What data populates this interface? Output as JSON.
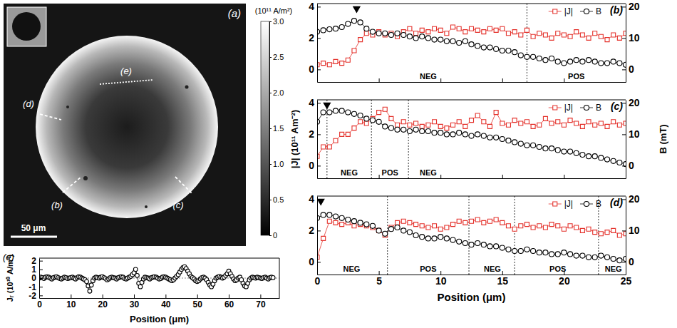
{
  "chart_data": [
    {
      "type": "image",
      "title": "(a)",
      "colorbar": {
        "title": "(10¹¹ A/m²)",
        "lim": [
          0,
          3
        ],
        "ticks": [
          0,
          0.5,
          {
            "value": 1,
            "label": "1.0"
          },
          1.5,
          {
            "value": 2,
            "label": "2.0"
          },
          2.5,
          {
            "value": 3,
            "label": "3.0"
          }
        ]
      },
      "scale_bar": "50 μm",
      "annotations": [
        "(b)",
        "(c)",
        "(d)",
        "(e)"
      ]
    },
    {
      "type": "line",
      "title": "(b)",
      "legend": "upper right",
      "tick_labels": "y",
      "x": [
        0,
        0.5,
        1,
        1.5,
        2,
        2.5,
        3,
        3.5,
        4,
        4.5,
        5,
        5.5,
        6,
        6.5,
        7,
        7.5,
        8,
        8.5,
        9,
        9.5,
        10,
        10.5,
        11,
        11.5,
        12,
        12.5,
        13,
        13.5,
        14,
        14.5,
        15,
        15.5,
        16,
        16.5,
        17,
        17.5,
        18,
        18.5,
        19,
        19.5,
        20,
        20.5,
        21,
        21.5,
        22,
        22.5,
        23,
        23.5,
        24,
        24.5,
        25
      ],
      "xlim": [
        0,
        25
      ],
      "xticks": [
        0,
        5,
        10,
        15,
        20,
        25
      ],
      "ylim": [
        -0.8,
        4.2
      ],
      "yticks": [
        0,
        2,
        4
      ],
      "y2lim": [
        -4,
        21
      ],
      "y2ticks": [
        0,
        10,
        20
      ],
      "series": [
        {
          "name": "|J|",
          "color": "#e4312b",
          "marker": "square",
          "line_style": "solid",
          "values": [
            0.3,
            0.4,
            0.3,
            0.5,
            0.4,
            0.6,
            1.2,
            1.9,
            2.3,
            2.2,
            2.4,
            2.2,
            2.3,
            2.1,
            2.4,
            2.6,
            2.3,
            2.5,
            2.4,
            2.6,
            2.5,
            2.3,
            2.7,
            2.6,
            2.4,
            2.6,
            2.5,
            2.4,
            2.6,
            2.5,
            2.6,
            2.3,
            2.4,
            2.2,
            2.5,
            2.1,
            2.3,
            2.2,
            2,
            2.3,
            2.2,
            2.1,
            2.4,
            2.2,
            2,
            2.3,
            2.1,
            1.9,
            2.2,
            2,
            2.3
          ]
        },
        {
          "name": "B",
          "color": "#000000",
          "marker": "circle",
          "line_style": "solid",
          "axis": "y2",
          "values": [
            12,
            12.5,
            12.8,
            13,
            13.5,
            14.5,
            15.5,
            15,
            13,
            12,
            11.5,
            11.5,
            11,
            11.5,
            11,
            10.5,
            10,
            10.5,
            10,
            9.5,
            9.5,
            9,
            9,
            8.5,
            9,
            8,
            7.5,
            7,
            7,
            6.5,
            6,
            6,
            5.5,
            4.5,
            4,
            4,
            3.5,
            3,
            3.5,
            2.5,
            2,
            2.5,
            3,
            2.5,
            3,
            2.5,
            2,
            2,
            2.5,
            2,
            1.5
          ]
        }
      ],
      "peak": 3.2,
      "dividers": [
        17
      ],
      "regions": [
        {
          "label": "NEG",
          "x": 9
        },
        {
          "label": "POS",
          "x": 21
        }
      ]
    },
    {
      "type": "line",
      "title": "(c)",
      "legend": "upper right",
      "tick_labels": "y",
      "ylabel": "|J| (10¹¹ Am⁻²)",
      "y2label": "B (mT)",
      "x": [
        0,
        0.5,
        1,
        1.5,
        2,
        2.5,
        3,
        3.5,
        4,
        4.5,
        5,
        5.5,
        6,
        6.5,
        7,
        7.5,
        8,
        8.5,
        9,
        9.5,
        10,
        10.5,
        11,
        11.5,
        12,
        12.5,
        13,
        13.5,
        14,
        14.5,
        15,
        15.5,
        16,
        16.5,
        17,
        17.5,
        18,
        18.5,
        19,
        19.5,
        20,
        20.5,
        21,
        21.5,
        22,
        22.5,
        23,
        23.5,
        24,
        24.5,
        25
      ],
      "xlim": [
        0,
        25
      ],
      "xticks": [
        0,
        5,
        10,
        15,
        20,
        25
      ],
      "ylim": [
        -0.8,
        4.2
      ],
      "yticks": [
        0,
        2,
        4
      ],
      "y2lim": [
        -4,
        21
      ],
      "y2ticks": [
        0,
        10,
        20
      ],
      "series": [
        {
          "name": "|J|",
          "color": "#e4312b",
          "marker": "square",
          "line_style": "solid",
          "values": [
            0.6,
            1.2,
            1.2,
            1.6,
            2,
            2,
            2.4,
            2.8,
            2.7,
            3,
            3.4,
            3.6,
            3,
            2.6,
            2.8,
            2.6,
            2.7,
            2.5,
            2.6,
            2.8,
            2.5,
            2.4,
            2.6,
            2.8,
            2.5,
            2.9,
            3.2,
            2.8,
            2.5,
            3.4,
            2.7,
            2.6,
            2.9,
            2.7,
            2.8,
            2.5,
            2.6,
            3,
            2.7,
            2.8,
            2.6,
            2.9,
            2.7,
            2.5,
            2.8,
            2.6,
            2.7,
            2.5,
            2.8,
            2.6,
            2.7
          ]
        },
        {
          "name": "B",
          "color": "#000000",
          "marker": "circle",
          "line_style": "solid",
          "axis": "y2",
          "values": [
            14,
            17,
            17,
            17.5,
            17.5,
            17,
            16.5,
            16,
            15,
            14.5,
            14,
            12.5,
            12,
            11.5,
            11.5,
            11,
            11.5,
            11,
            11,
            10.5,
            10.5,
            10,
            10,
            10.5,
            10,
            9.5,
            10,
            9.5,
            9,
            9,
            8.5,
            8,
            7.5,
            7,
            6.5,
            6.5,
            6,
            5.5,
            5.5,
            5,
            4.5,
            4.5,
            4,
            3.5,
            3,
            3,
            2.5,
            2,
            1.5,
            1,
            0.5
          ]
        }
      ],
      "peak": 0.8,
      "dividers": [
        0.8,
        4.4,
        7.4
      ],
      "regions": [
        {
          "label": "NEG",
          "x": 2.6
        },
        {
          "label": "POS",
          "x": 5.9
        },
        {
          "label": "NEG",
          "x": 9
        }
      ]
    },
    {
      "type": "line",
      "title": "(d)",
      "legend": "upper right",
      "xlabel": "Position (μm)",
      "x": [
        0,
        0.5,
        1,
        1.5,
        2,
        2.5,
        3,
        3.5,
        4,
        4.5,
        5,
        5.5,
        6,
        6.5,
        7,
        7.5,
        8,
        8.5,
        9,
        9.5,
        10,
        10.5,
        11,
        11.5,
        12,
        12.5,
        13,
        13.5,
        14,
        14.5,
        15,
        15.5,
        16,
        16.5,
        17,
        17.5,
        18,
        18.5,
        19,
        19.5,
        20,
        20.5,
        21,
        21.5,
        22,
        22.5,
        23,
        23.5,
        24,
        24.5,
        25
      ],
      "xlim": [
        0,
        25
      ],
      "xticks": [
        0,
        5,
        10,
        15,
        20,
        25
      ],
      "ylim": [
        -0.8,
        4.2
      ],
      "yticks": [
        0,
        2,
        4
      ],
      "y2lim": [
        -4,
        21
      ],
      "y2ticks": [
        0,
        10,
        20
      ],
      "series": [
        {
          "name": "|J|",
          "color": "#e4312b",
          "marker": "square",
          "line_style": "solid",
          "values": [
            0.3,
            1.5,
            2.6,
            2.5,
            2.4,
            2.5,
            2.3,
            2.4,
            2.3,
            2.2,
            2,
            1.7,
            2.2,
            2.5,
            2.6,
            2.5,
            2.4,
            2.3,
            2.2,
            2.3,
            2.1,
            2.2,
            2.4,
            2.6,
            2.5,
            2.6,
            2.7,
            2.5,
            2.6,
            2.7,
            2.5,
            2.3,
            2.1,
            2.3,
            2.4,
            2.2,
            2.3,
            2.2,
            2.4,
            2.3,
            2.1,
            2.3,
            2.2,
            2,
            2.1,
            1.9,
            1.8,
            1.9,
            2,
            1.7,
            1.8
          ]
        },
        {
          "name": "B",
          "color": "#000000",
          "marker": "circle",
          "line_style": "solid",
          "axis": "y2",
          "values": [
            14,
            15,
            15,
            14.5,
            14,
            13.5,
            13,
            12.5,
            12,
            11.5,
            10,
            9,
            10.5,
            11,
            10,
            9.5,
            8.5,
            8,
            7.5,
            7.5,
            8,
            7.5,
            7,
            6.5,
            6,
            5.5,
            6,
            5.5,
            5,
            5,
            4.5,
            4,
            3.5,
            3.5,
            4,
            3.5,
            3,
            3,
            2.5,
            2.5,
            3,
            2.5,
            2,
            2,
            1.5,
            1.5,
            2,
            1.5,
            1,
            0.5,
            1
          ]
        }
      ],
      "peak": 0.3,
      "dividers": [
        5.7,
        12.3,
        16,
        22.8
      ],
      "regions": [
        {
          "label": "NEG",
          "x": 2.8
        },
        {
          "label": "POS",
          "x": 9
        },
        {
          "label": "NEG",
          "x": 14.2
        },
        {
          "label": "POS",
          "x": 19.5
        },
        {
          "label": "NEG",
          "x": 24
        }
      ]
    },
    {
      "type": "line",
      "title": "(e)",
      "xlabel": "Position (μm)",
      "ylabel": "Jᵣ (10¹⁰ A/m²)",
      "x": [
        0,
        0.5,
        1,
        1.5,
        2,
        2.5,
        3,
        3.5,
        4,
        4.5,
        5,
        5.5,
        6,
        6.5,
        7,
        7.5,
        8,
        8.5,
        9,
        9.5,
        10,
        10.5,
        11,
        11.5,
        12,
        12.5,
        13,
        13.5,
        14,
        14.5,
        15,
        15.5,
        16,
        16.5,
        17,
        17.5,
        18,
        18.5,
        19,
        19.5,
        20,
        20.5,
        21,
        21.5,
        22,
        22.5,
        23,
        23.5,
        24,
        24.5,
        25,
        25.5,
        26,
        26.5,
        27,
        27.5,
        28,
        28.5,
        29,
        29.5,
        30,
        30.5,
        31,
        31.5,
        32,
        32.5,
        33,
        33.5,
        34,
        34.5,
        35,
        35.5,
        36,
        36.5,
        37,
        37.5,
        38,
        38.5,
        39,
        39.5,
        40,
        40.5,
        41,
        41.5,
        42,
        42.5,
        43,
        43.5,
        44,
        44.5,
        45,
        45.5,
        46,
        46.5,
        47,
        47.5,
        48,
        48.5,
        49,
        49.5,
        50,
        50.5,
        51,
        51.5,
        52,
        52.5,
        53,
        53.5,
        54,
        54.5,
        55,
        55.5,
        56,
        56.5,
        57,
        57.5,
        58,
        58.5,
        59,
        59.5,
        60,
        60.5,
        61,
        61.5,
        62,
        62.5,
        63,
        63.5,
        64,
        64.5,
        65,
        65.5,
        66,
        66.5,
        67,
        67.5,
        68,
        68.5,
        69,
        69.5,
        70,
        70.5,
        71,
        71.5,
        72,
        72.5,
        73,
        73.5,
        74
      ],
      "xlim": [
        0,
        76
      ],
      "xticks": [
        0,
        10,
        20,
        30,
        40,
        50,
        60,
        70
      ],
      "ylim": [
        -2.3,
        2.3
      ],
      "yticks": [
        -2,
        -1,
        0,
        1,
        2
      ],
      "hline": 0,
      "series": [
        {
          "color": "#000000",
          "marker": "circle",
          "line_style": "solid",
          "values": [
            0,
            0.1,
            0.05,
            -0.05,
            0.1,
            0.15,
            0.1,
            0,
            -0.1,
            0.05,
            0.1,
            0.15,
            0.05,
            -0.05,
            -0.1,
            0,
            0.1,
            0.05,
            -0.05,
            0,
            0.05,
            0.1,
            0,
            -0.1,
            0.05,
            0.15,
            0.1,
            0,
            -0.1,
            -0.2,
            -0.4,
            -0.9,
            -1.5,
            -0.8,
            -0.3,
            0,
            0.1,
            0.05,
            0,
            0.1,
            0.15,
            0.05,
            -0.05,
            -0.2,
            -0.1,
            0.05,
            0.1,
            0.05,
            0,
            -0.1,
            0.05,
            0.1,
            0.15,
            0.1,
            -0.05,
            -0.1,
            0,
            0.1,
            0.2,
            0.4,
            0.6,
            1,
            0.3,
            -0.6,
            -1,
            -0.5,
            -0.1,
            0.1,
            0.05,
            0,
            -0.1,
            0.05,
            0.1,
            0.15,
            0.1,
            0,
            -0.1,
            -0.05,
            0.1,
            0.15,
            0.1,
            0,
            -0.1,
            -0.2,
            -0.3,
            -0.2,
            0,
            0.2,
            0.4,
            0.7,
            1,
            1.2,
            1.3,
            1.1,
            0.8,
            0.5,
            0.2,
            0.05,
            -0.1,
            -0.3,
            -0.4,
            -0.3,
            -0.1,
            0.05,
            0.1,
            0,
            -0.2,
            -0.5,
            -0.8,
            -1,
            -0.7,
            -0.3,
            0,
            0.1,
            0.2,
            0.1,
            0,
            0.1,
            0.3,
            0.5,
            0.8,
            0.5,
            0.2,
            -0.1,
            -0.3,
            -0.2,
            0,
            0.1,
            -0.2,
            -0.6,
            -0.9,
            -1,
            -0.6,
            -0.2,
            0,
            0.1,
            0.05,
            0,
            0.1,
            0.05,
            0,
            -0.05,
            0.05,
            0.1,
            0,
            -0.1,
            0.05,
            0.1,
            0.05
          ]
        }
      ]
    }
  ]
}
